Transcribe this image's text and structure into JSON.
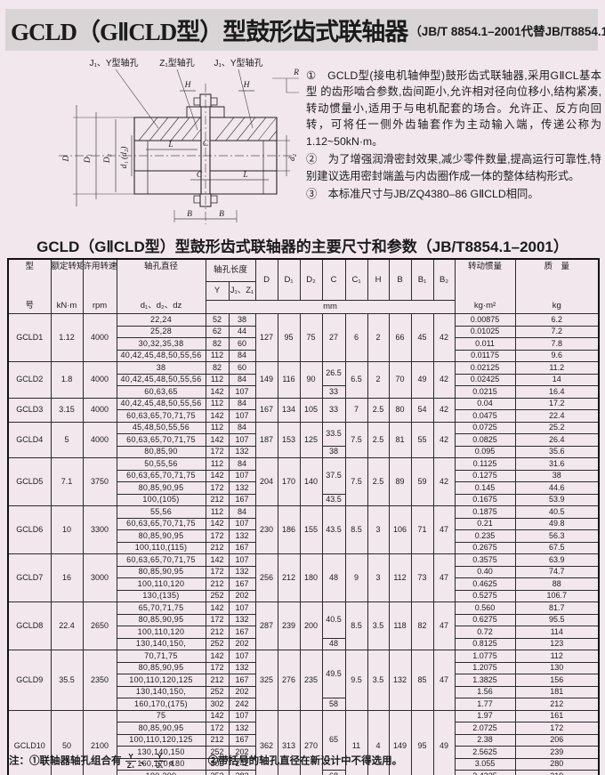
{
  "page": {
    "title": "GCLD（GⅡCLD型）型鼓形齿式联轴器",
    "title_suffix": "（JB/T 8854.1–2001代替JB/T8854.1–1999）",
    "table_title": "GCLD（GⅡCLD型）型鼓形齿式联轴器的主要尺寸和参数（JB/T8854.1–2001）"
  },
  "notes": [
    {
      "num": "①",
      "text": "GCLD型(接电机轴伸型)鼓形齿式联轴器,采用GⅡCL基本型 的齿形啮合参数,齿间距小,允许相对径向位移小,结构紧凑,转动惯量小,适用于与电机配套的场合。允许正、反方向回转，可将任一侧外齿轴套作为主动输入端，传递公称为1.12~50kN·m。"
    },
    {
      "num": "②",
      "text": "为了增强润滑密封效果,减少零件数量,提高运行可靠性,特别建议选用密封端盖与内齿圈作成一体的整体结构形式。"
    },
    {
      "num": "③",
      "text": "本标准尺寸与JB/ZQ4380–86 GⅡCLD相同。"
    }
  ],
  "diagram": {
    "label_left": "J₁、Y型轴孔",
    "label_mid": "Z₁型轴孔",
    "label_right": "J₁、Y型轴孔",
    "dim_H": "H",
    "dim_R": "R",
    "dim_D": "D",
    "dim_D1": "D₁",
    "dim_D2": "D₂",
    "dim_d1": "d₁ (d₂)",
    "dim_dz": "d₂",
    "dim_L": "L",
    "dim_C": "C",
    "dim_B": "B"
  },
  "table": {
    "headers": {
      "model": [
        "型",
        "号"
      ],
      "torque": [
        "额定转矩",
        "kN·m"
      ],
      "speed": [
        "许用转速",
        "rpm"
      ],
      "bore_dia": [
        "轴孔直径",
        "d₁、d₂、dz"
      ],
      "bore_len": "轴孔长度",
      "col_y": "Y",
      "col_jz": "J₁、Z₁",
      "dims": [
        "D",
        "D₁",
        "D₂",
        "C",
        "C₁",
        "H",
        "B",
        "B₁",
        "B₂"
      ],
      "unit_mm": "mm",
      "inertia": [
        "转动惯量",
        "kg·m²"
      ],
      "mass": [
        "质　量",
        "kg"
      ]
    },
    "groups": [
      {
        "model": "GCLD1",
        "torque": "1.12",
        "speed": "4000",
        "D": "127",
        "D1": "95",
        "D2": "75",
        "C1": "6",
        "H": "2",
        "B": "66",
        "B1": "45",
        "B2": "42",
        "c_spans": [
          {
            "value": "27",
            "span": 4
          }
        ],
        "rows": [
          {
            "d": "22,24",
            "y": "52",
            "jz": "38",
            "inertia": "0.00875",
            "mass": "6.2"
          },
          {
            "d": "25,28",
            "y": "62",
            "jz": "44",
            "inertia": "0.01025",
            "mass": "7.2"
          },
          {
            "d": "30,32,35,38",
            "y": "82",
            "jz": "60",
            "inertia": "0.011",
            "mass": "7.8"
          },
          {
            "d": "40,42,45,48,50,55,56",
            "y": "112",
            "jz": "84",
            "inertia": "0.01175",
            "mass": "9.6"
          }
        ]
      },
      {
        "model": "GCLD2",
        "torque": "1.8",
        "speed": "4000",
        "D": "149",
        "D1": "116",
        "D2": "90",
        "C1": "6.5",
        "H": "2",
        "B": "70",
        "B1": "49",
        "B2": "42",
        "c_spans": [
          {
            "value": "26.5",
            "span": 2
          },
          {
            "value": "33",
            "span": 1
          }
        ],
        "rows": [
          {
            "d": "38",
            "y": "82",
            "jz": "60",
            "inertia": "0.02125",
            "mass": "11.2"
          },
          {
            "d": "40,42,45,48,50,55,56",
            "y": "112",
            "jz": "84",
            "inertia": "0.02425",
            "mass": "14"
          },
          {
            "d": "60,63,65",
            "y": "142",
            "jz": "107",
            "inertia": "0.0215",
            "mass": "16.4"
          }
        ]
      },
      {
        "model": "GCLD3",
        "torque": "3.15",
        "speed": "4000",
        "D": "167",
        "D1": "134",
        "D2": "105",
        "C1": "7",
        "H": "2.5",
        "B": "80",
        "B1": "54",
        "B2": "42",
        "c_spans": [
          {
            "value": "33",
            "span": 2
          }
        ],
        "rows": [
          {
            "d": "40,42,45,48,50,55,56",
            "y": "112",
            "jz": "84",
            "inertia": "0.04",
            "mass": "17.2"
          },
          {
            "d": "60,63,65,70,71,75",
            "y": "142",
            "jz": "107",
            "inertia": "0.0475",
            "mass": "22.4"
          }
        ]
      },
      {
        "model": "GCLD4",
        "torque": "5",
        "speed": "4000",
        "D": "187",
        "D1": "153",
        "D2": "125",
        "C1": "7.5",
        "H": "2.5",
        "B": "81",
        "B1": "55",
        "B2": "42",
        "c_spans": [
          {
            "value": "33.5",
            "span": 2
          },
          {
            "value": "38",
            "span": 1
          }
        ],
        "rows": [
          {
            "d": "45,48,50,55,56",
            "y": "112",
            "jz": "84",
            "inertia": "0.0725",
            "mass": "25.2"
          },
          {
            "d": "60,63,65,70,71,75",
            "y": "142",
            "jz": "107",
            "inertia": "0.0825",
            "mass": "26.4"
          },
          {
            "d": "80,85,90",
            "y": "172",
            "jz": "132",
            "inertia": "0.095",
            "mass": "35.6"
          }
        ]
      },
      {
        "model": "GCLD5",
        "torque": "7.1",
        "speed": "3750",
        "D": "204",
        "D1": "170",
        "D2": "140",
        "C1": "7.5",
        "H": "2.5",
        "B": "89",
        "B1": "59",
        "B2": "42",
        "c_spans": [
          {
            "value": "37.5",
            "span": 3
          },
          {
            "value": "43.5",
            "span": 1
          }
        ],
        "rows": [
          {
            "d": "50,55,56",
            "y": "112",
            "jz": "84",
            "inertia": "0.1125",
            "mass": "31.6"
          },
          {
            "d": "60,63,65,70,71,75",
            "y": "142",
            "jz": "107",
            "inertia": "0.1275",
            "mass": "38"
          },
          {
            "d": "80,85,90,95",
            "y": "172",
            "jz": "132",
            "inertia": "0.145",
            "mass": "44.6"
          },
          {
            "d": "100,(105)",
            "y": "212",
            "jz": "167",
            "inertia": "0.1675",
            "mass": "53.9"
          }
        ]
      },
      {
        "model": "GCLD6",
        "torque": "10",
        "speed": "3300",
        "D": "230",
        "D1": "186",
        "D2": "155",
        "C1": "8.5",
        "H": "3",
        "B": "106",
        "B1": "71",
        "B2": "47",
        "c_spans": [
          {
            "value": "43.5",
            "span": 4
          }
        ],
        "rows": [
          {
            "d": "55,56",
            "y": "112",
            "jz": "84",
            "inertia": "0.1875",
            "mass": "40.5"
          },
          {
            "d": "60,63,65,70,71,75",
            "y": "142",
            "jz": "107",
            "inertia": "0.21",
            "mass": "49.8"
          },
          {
            "d": "80,85,90,95",
            "y": "172",
            "jz": "132",
            "inertia": "0.235",
            "mass": "56.3"
          },
          {
            "d": "100,110,(115)",
            "y": "212",
            "jz": "167",
            "inertia": "0.2675",
            "mass": "67.5"
          }
        ]
      },
      {
        "model": "GCLD7",
        "torque": "16",
        "speed": "3000",
        "D": "256",
        "D1": "212",
        "D2": "180",
        "C1": "9",
        "H": "3",
        "B": "112",
        "B1": "73",
        "B2": "47",
        "c_spans": [
          {
            "value": "48",
            "span": 4
          }
        ],
        "rows": [
          {
            "d": "60,63,65,70,71,75",
            "y": "142",
            "jz": "107",
            "inertia": "0.3575",
            "mass": "63.9"
          },
          {
            "d": "80,85,90,95",
            "y": "172",
            "jz": "132",
            "inertia": "0.40",
            "mass": "74.7"
          },
          {
            "d": "100,110,120",
            "y": "212",
            "jz": "167",
            "inertia": "0.4625",
            "mass": "88"
          },
          {
            "d": "130,(135)",
            "y": "252",
            "jz": "202",
            "inertia": "0.5275",
            "mass": "106.7"
          }
        ]
      },
      {
        "model": "GCLD8",
        "torque": "22.4",
        "speed": "2650",
        "D": "287",
        "D1": "239",
        "D2": "200",
        "C1": "8.5",
        "H": "3.5",
        "B": "118",
        "B1": "82",
        "B2": "47",
        "c_spans": [
          {
            "value": "40.5",
            "span": 3
          },
          {
            "value": "48",
            "span": 1
          }
        ],
        "rows": [
          {
            "d": "65,70,71,75",
            "y": "142",
            "jz": "107",
            "inertia": "0.560",
            "mass": "81.7"
          },
          {
            "d": "80,85,90,95",
            "y": "172",
            "jz": "132",
            "inertia": "0.6275",
            "mass": "95.5"
          },
          {
            "d": "100,110,120",
            "y": "212",
            "jz": "167",
            "inertia": "0.72",
            "mass": "114"
          },
          {
            "d": "130,140,150,",
            "y": "252",
            "jz": "202",
            "inertia": "0.8125",
            "mass": "123"
          }
        ]
      },
      {
        "model": "GCLD9",
        "torque": "35.5",
        "speed": "2350",
        "D": "325",
        "D1": "276",
        "D2": "235",
        "C1": "9.5",
        "H": "3.5",
        "B": "132",
        "B1": "85",
        "B2": "47",
        "c_spans": [
          {
            "value": "49.5",
            "span": 4
          },
          {
            "value": "58",
            "span": 1
          }
        ],
        "rows": [
          {
            "d": "70,71,75",
            "y": "142",
            "jz": "107",
            "inertia": "1.0775",
            "mass": "112"
          },
          {
            "d": "80,85,90,95",
            "y": "172",
            "jz": "132",
            "inertia": "1.2075",
            "mass": "130"
          },
          {
            "d": "100,110,120,125",
            "y": "212",
            "jz": "167",
            "inertia": "1.3825",
            "mass": "156"
          },
          {
            "d": "130,140,150,",
            "y": "252",
            "jz": "202",
            "inertia": "1.56",
            "mass": "181"
          },
          {
            "d": "160,170,(175)",
            "y": "302",
            "jz": "242",
            "inertia": "1.77",
            "mass": "212"
          }
        ]
      },
      {
        "model": "GCLD10",
        "torque": "50",
        "speed": "2100",
        "D": "362",
        "D1": "313",
        "D2": "270",
        "C1": "11",
        "H": "4",
        "B": "149",
        "B1": "95",
        "B2": "49",
        "c_spans": [
          {
            "value": "65",
            "span": 5
          },
          {
            "value": "68",
            "span": 1
          }
        ],
        "rows": [
          {
            "d": "75",
            "y": "142",
            "jz": "107",
            "inertia": "1.97",
            "mass": "161"
          },
          {
            "d": "80,85,90,95",
            "y": "172",
            "jz": "132",
            "inertia": "2.0725",
            "mass": "172"
          },
          {
            "d": "100,110,120,125",
            "y": "212",
            "jz": "167",
            "inertia": "2.38",
            "mass": "206"
          },
          {
            "d": "130,140,150",
            "y": "252",
            "jz": "202",
            "inertia": "2.5625",
            "mass": "239"
          },
          {
            "d": "160,170,180",
            "y": "302",
            "jz": "242",
            "inertia": "3.055",
            "mass": "280"
          },
          {
            "d": "190,200",
            "y": "352",
            "jz": "282",
            "inertia": "3.4225",
            "mass": "319"
          }
        ]
      }
    ]
  },
  "footnote": {
    "prefix": "注：①联轴器轴孔组合有",
    "frac1_top": "Y",
    "frac1_bottom": "Z₁",
    "sep": "、",
    "frac2_top": "Y",
    "frac2_bottom": "J₁",
    "end1": "。",
    "note2": "②带括号的轴孔直径在新设计中不得选用。"
  }
}
